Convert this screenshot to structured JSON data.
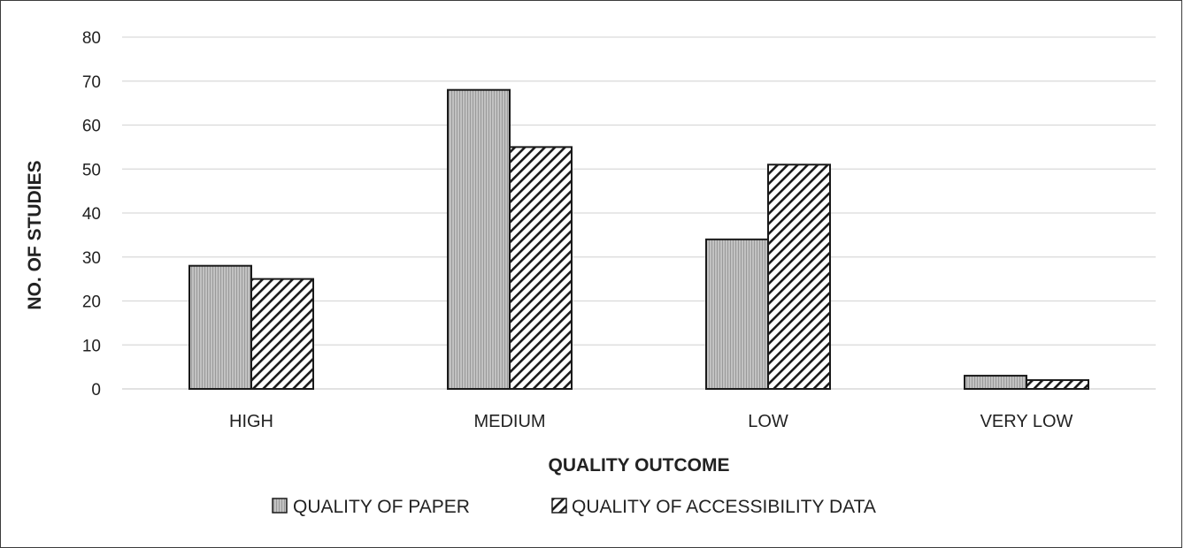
{
  "chart_data": {
    "type": "bar",
    "categories": [
      "HIGH",
      "MEDIUM",
      "LOW",
      "VERY LOW"
    ],
    "series": [
      {
        "name": "QUALITY OF PAPER",
        "values": [
          28,
          68,
          34,
          3
        ],
        "fill": "#b8b8b8",
        "pattern": "vertical-stripes"
      },
      {
        "name": "QUALITY OF ACCESSIBILITY DATA",
        "values": [
          25,
          55,
          51,
          2
        ],
        "fill": "#ffffff",
        "pattern": "diagonal-hatch"
      }
    ],
    "xlabel": "QUALITY OUTCOME",
    "ylabel": "NO. OF STUDIES",
    "ylim": [
      0,
      80
    ],
    "yticks": [
      0,
      10,
      20,
      30,
      40,
      50,
      60,
      70,
      80
    ],
    "grid": true,
    "legend_position": "bottom",
    "colors": {
      "grid": "#d9d9d9",
      "bar_outline": "#1a1a1a",
      "text": "#222222"
    }
  }
}
